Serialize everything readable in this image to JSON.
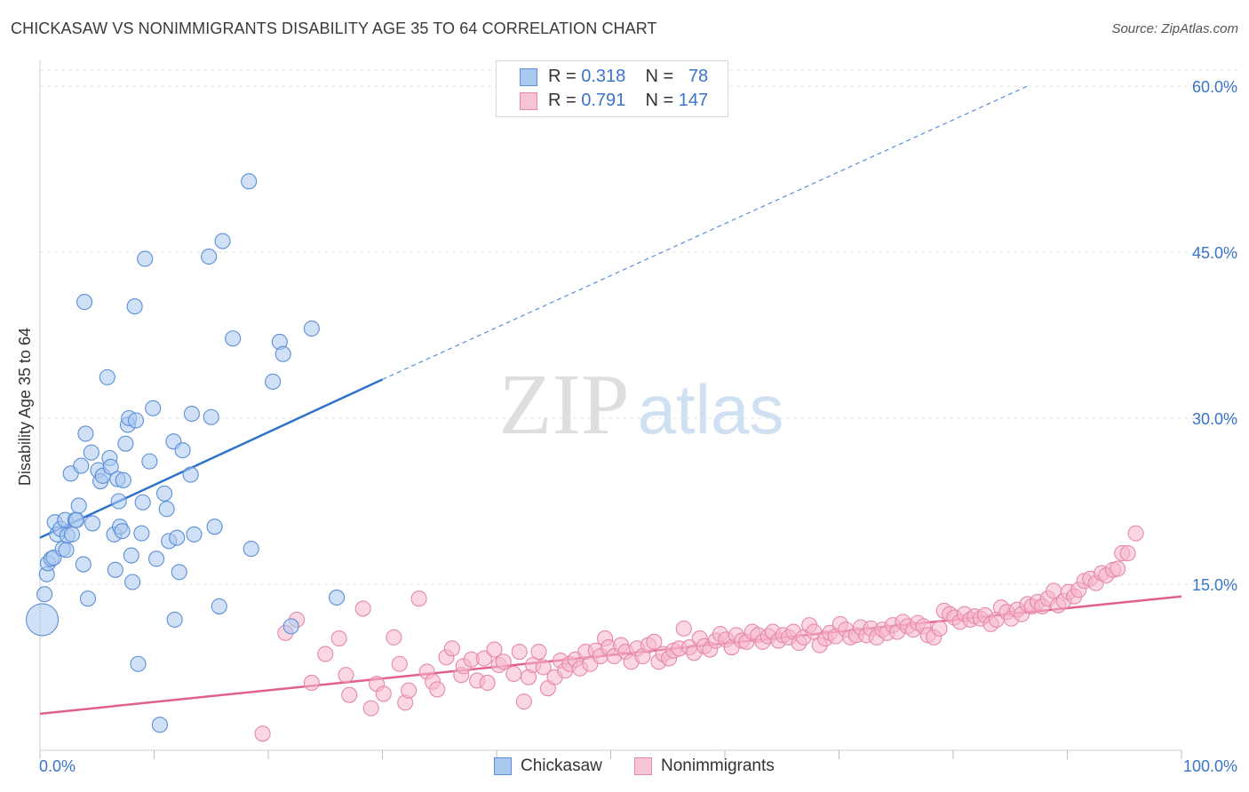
{
  "header": {
    "title": "CHICKASAW VS NONIMMIGRANTS DISABILITY AGE 35 TO 64 CORRELATION CHART",
    "source": "Source: ZipAtlas.com"
  },
  "watermark": {
    "zip": "ZIP",
    "atlas": "atlas"
  },
  "legend": {
    "rows": [
      {
        "r_label": "R = ",
        "r_value": "0.318",
        "n_label": "N = ",
        "n_value": "78"
      },
      {
        "r_label": "R = ",
        "r_value": "0.791",
        "n_label": "N = ",
        "n_value": "147"
      }
    ]
  },
  "bottom_legend": {
    "series1": "Chickasaw",
    "series2": "Nonimmigrants"
  },
  "colors": {
    "chickasaw_fill": "#a9c8f0",
    "chickasaw_stroke": "#5b8fd6",
    "chickasaw_line": "#2f72cc",
    "nonimm_fill": "#f6b6cb",
    "nonimm_stroke": "#e688aa",
    "nonimm_line": "#e0608e",
    "axis_label": "#3a74c9",
    "grid": "#e3e3e3"
  },
  "chart_data": {
    "type": "scatter",
    "title": "CHICKASAW VS NONIMMIGRANTS DISABILITY AGE 35 TO 64 CORRELATION CHART",
    "xlabel": "",
    "ylabel": "Disability Age 35 to 64",
    "xlim": [
      0,
      100
    ],
    "ylim": [
      0,
      60
    ],
    "x_tick_labels": [
      "0.0%",
      "100.0%"
    ],
    "y_ticks": [
      15,
      30,
      45,
      60
    ],
    "y_tick_labels": [
      "15.0%",
      "30.0%",
      "45.0%",
      "60.0%"
    ],
    "grid": true,
    "legend_placement": "top-center",
    "series": [
      {
        "name": "Chickasaw",
        "R": 0.318,
        "N": 78,
        "trend": {
          "x": [
            0,
            30
          ],
          "y": [
            19.2,
            33.5
          ],
          "dashed_extension_to": [
            86.5,
            60
          ]
        },
        "points": [
          [
            0.2,
            11.8
          ],
          [
            0.4,
            14.1
          ],
          [
            0.6,
            15.9
          ],
          [
            0.7,
            16.9
          ],
          [
            1.0,
            17.3
          ],
          [
            1.2,
            17.4
          ],
          [
            1.3,
            20.6
          ],
          [
            1.5,
            19.5
          ],
          [
            1.8,
            20.0
          ],
          [
            2.0,
            18.2
          ],
          [
            2.2,
            20.8
          ],
          [
            2.3,
            18.1
          ],
          [
            2.4,
            19.4
          ],
          [
            2.7,
            25.0
          ],
          [
            2.8,
            19.5
          ],
          [
            3.1,
            20.8
          ],
          [
            3.2,
            20.8
          ],
          [
            3.4,
            22.1
          ],
          [
            3.6,
            25.7
          ],
          [
            3.8,
            16.8
          ],
          [
            3.9,
            40.5
          ],
          [
            4.0,
            28.6
          ],
          [
            4.2,
            13.7
          ],
          [
            4.5,
            26.9
          ],
          [
            4.6,
            20.5
          ],
          [
            5.1,
            25.3
          ],
          [
            5.3,
            24.3
          ],
          [
            5.5,
            24.8
          ],
          [
            5.9,
            33.7
          ],
          [
            6.1,
            26.4
          ],
          [
            6.2,
            25.6
          ],
          [
            6.5,
            19.5
          ],
          [
            6.6,
            16.3
          ],
          [
            6.8,
            24.5
          ],
          [
            6.9,
            22.5
          ],
          [
            7.0,
            20.2
          ],
          [
            7.2,
            19.8
          ],
          [
            7.3,
            24.4
          ],
          [
            7.5,
            27.7
          ],
          [
            7.7,
            29.4
          ],
          [
            7.8,
            30.0
          ],
          [
            8.0,
            17.6
          ],
          [
            8.1,
            15.2
          ],
          [
            8.3,
            40.1
          ],
          [
            8.4,
            29.8
          ],
          [
            8.6,
            7.8
          ],
          [
            8.9,
            19.6
          ],
          [
            9.0,
            22.4
          ],
          [
            9.2,
            44.4
          ],
          [
            9.6,
            26.1
          ],
          [
            9.9,
            30.9
          ],
          [
            10.2,
            17.3
          ],
          [
            10.5,
            2.3
          ],
          [
            10.9,
            23.2
          ],
          [
            11.1,
            21.8
          ],
          [
            11.3,
            18.9
          ],
          [
            11.7,
            27.9
          ],
          [
            11.8,
            11.8
          ],
          [
            12.0,
            19.2
          ],
          [
            12.2,
            16.1
          ],
          [
            12.5,
            27.1
          ],
          [
            13.2,
            24.9
          ],
          [
            13.3,
            30.4
          ],
          [
            13.5,
            19.5
          ],
          [
            14.8,
            44.6
          ],
          [
            15.0,
            30.1
          ],
          [
            15.3,
            20.2
          ],
          [
            15.7,
            13.0
          ],
          [
            16.0,
            46.0
          ],
          [
            16.9,
            37.2
          ],
          [
            18.3,
            51.4
          ],
          [
            18.5,
            18.2
          ],
          [
            20.4,
            33.3
          ],
          [
            21.0,
            36.9
          ],
          [
            21.3,
            35.8
          ],
          [
            22.0,
            11.2
          ],
          [
            23.8,
            38.1
          ],
          [
            26.0,
            13.8
          ]
        ]
      },
      {
        "name": "Nonimmigrants",
        "R": 0.791,
        "N": 147,
        "trend": {
          "x": [
            0,
            100
          ],
          "y": [
            3.3,
            13.9
          ]
        },
        "points": [
          [
            19.5,
            1.5
          ],
          [
            21.5,
            10.6
          ],
          [
            22.5,
            11.8
          ],
          [
            23.8,
            6.1
          ],
          [
            25.0,
            8.7
          ],
          [
            26.2,
            10.1
          ],
          [
            26.8,
            6.8
          ],
          [
            27.1,
            5.0
          ],
          [
            28.3,
            12.8
          ],
          [
            29.0,
            3.8
          ],
          [
            29.5,
            6.0
          ],
          [
            30.1,
            5.1
          ],
          [
            31.0,
            10.2
          ],
          [
            31.5,
            7.8
          ],
          [
            32.0,
            4.3
          ],
          [
            32.3,
            5.4
          ],
          [
            33.2,
            13.7
          ],
          [
            33.9,
            7.1
          ],
          [
            34.4,
            6.2
          ],
          [
            34.8,
            5.5
          ],
          [
            35.6,
            8.4
          ],
          [
            36.1,
            9.2
          ],
          [
            36.9,
            6.8
          ],
          [
            37.1,
            7.6
          ],
          [
            37.8,
            8.2
          ],
          [
            38.3,
            6.3
          ],
          [
            38.9,
            8.3
          ],
          [
            39.2,
            6.1
          ],
          [
            39.8,
            9.1
          ],
          [
            40.2,
            7.7
          ],
          [
            40.6,
            8.0
          ],
          [
            41.5,
            6.9
          ],
          [
            42.0,
            8.9
          ],
          [
            42.4,
            4.4
          ],
          [
            42.8,
            6.6
          ],
          [
            43.2,
            7.7
          ],
          [
            43.7,
            8.9
          ],
          [
            44.1,
            7.5
          ],
          [
            44.5,
            5.6
          ],
          [
            45.1,
            6.6
          ],
          [
            45.6,
            8.1
          ],
          [
            46.0,
            7.2
          ],
          [
            46.4,
            7.8
          ],
          [
            46.9,
            8.2
          ],
          [
            47.3,
            7.4
          ],
          [
            47.8,
            8.9
          ],
          [
            48.2,
            7.8
          ],
          [
            48.7,
            9.0
          ],
          [
            49.1,
            8.5
          ],
          [
            49.5,
            10.1
          ],
          [
            49.8,
            9.3
          ],
          [
            50.3,
            8.5
          ],
          [
            50.9,
            9.5
          ],
          [
            51.3,
            8.9
          ],
          [
            51.8,
            8.0
          ],
          [
            52.3,
            9.2
          ],
          [
            52.8,
            8.5
          ],
          [
            53.3,
            9.5
          ],
          [
            53.8,
            9.8
          ],
          [
            54.2,
            8.0
          ],
          [
            54.6,
            8.7
          ],
          [
            55.1,
            8.3
          ],
          [
            55.5,
            9.0
          ],
          [
            56.0,
            9.2
          ],
          [
            56.4,
            11.0
          ],
          [
            56.9,
            9.3
          ],
          [
            57.3,
            8.8
          ],
          [
            57.8,
            10.1
          ],
          [
            58.2,
            9.4
          ],
          [
            58.7,
            9.1
          ],
          [
            59.2,
            9.9
          ],
          [
            59.6,
            10.5
          ],
          [
            60.1,
            10.0
          ],
          [
            60.6,
            9.3
          ],
          [
            61.0,
            10.4
          ],
          [
            61.5,
            9.9
          ],
          [
            61.9,
            9.8
          ],
          [
            62.4,
            10.7
          ],
          [
            62.9,
            10.4
          ],
          [
            63.3,
            9.8
          ],
          [
            63.8,
            10.3
          ],
          [
            64.2,
            10.7
          ],
          [
            64.7,
            9.9
          ],
          [
            65.1,
            10.4
          ],
          [
            65.6,
            10.2
          ],
          [
            66.0,
            10.7
          ],
          [
            66.5,
            9.7
          ],
          [
            66.9,
            10.2
          ],
          [
            67.4,
            11.3
          ],
          [
            67.8,
            10.7
          ],
          [
            68.3,
            9.5
          ],
          [
            68.8,
            10.1
          ],
          [
            69.2,
            10.6
          ],
          [
            69.7,
            10.3
          ],
          [
            70.1,
            11.4
          ],
          [
            70.6,
            10.9
          ],
          [
            71.0,
            10.2
          ],
          [
            71.5,
            10.4
          ],
          [
            71.9,
            11.1
          ],
          [
            72.4,
            10.4
          ],
          [
            72.8,
            11.0
          ],
          [
            73.3,
            10.2
          ],
          [
            73.8,
            10.9
          ],
          [
            74.2,
            10.6
          ],
          [
            74.7,
            11.3
          ],
          [
            75.1,
            10.7
          ],
          [
            75.6,
            11.6
          ],
          [
            76.0,
            11.2
          ],
          [
            76.5,
            10.9
          ],
          [
            76.9,
            11.5
          ],
          [
            77.4,
            11.2
          ],
          [
            77.8,
            10.4
          ],
          [
            78.3,
            10.2
          ],
          [
            78.8,
            11.0
          ],
          [
            79.2,
            12.6
          ],
          [
            79.7,
            12.3
          ],
          [
            80.1,
            12.0
          ],
          [
            80.6,
            11.6
          ],
          [
            81.0,
            12.3
          ],
          [
            81.5,
            11.8
          ],
          [
            81.9,
            12.1
          ],
          [
            82.4,
            11.9
          ],
          [
            82.8,
            12.2
          ],
          [
            83.3,
            11.4
          ],
          [
            83.8,
            11.8
          ],
          [
            84.2,
            12.9
          ],
          [
            84.7,
            12.5
          ],
          [
            85.1,
            11.9
          ],
          [
            85.6,
            12.7
          ],
          [
            86.0,
            12.3
          ],
          [
            86.5,
            13.2
          ],
          [
            86.9,
            13.0
          ],
          [
            87.4,
            13.4
          ],
          [
            87.8,
            13.0
          ],
          [
            88.3,
            13.7
          ],
          [
            88.8,
            14.4
          ],
          [
            89.2,
            13.1
          ],
          [
            89.7,
            13.5
          ],
          [
            90.1,
            14.3
          ],
          [
            90.6,
            13.9
          ],
          [
            91.0,
            14.5
          ],
          [
            91.5,
            15.3
          ],
          [
            92.0,
            15.5
          ],
          [
            92.5,
            15.1
          ],
          [
            93.0,
            16.0
          ],
          [
            93.4,
            15.8
          ],
          [
            94.0,
            16.3
          ],
          [
            94.4,
            16.4
          ],
          [
            94.8,
            17.8
          ],
          [
            95.3,
            17.8
          ],
          [
            96.0,
            19.6
          ]
        ]
      }
    ]
  }
}
